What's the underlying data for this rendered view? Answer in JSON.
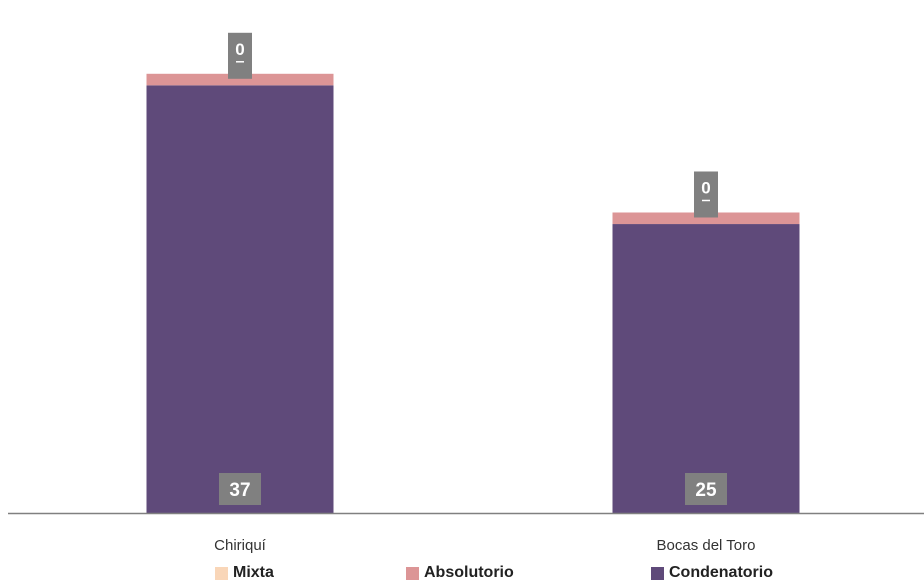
{
  "chart_data": {
    "type": "bar",
    "stacked": true,
    "categories": [
      "Chiriquí",
      "Bocas del Toro"
    ],
    "series": [
      {
        "name": "Condenatorio",
        "values": [
          37,
          25
        ],
        "color": "#5f4a7a"
      },
      {
        "name": "Absolutorio",
        "values": [
          1,
          1
        ],
        "color": "#dc9596"
      },
      {
        "name": "Mixta",
        "values": [
          0,
          0
        ],
        "color": "#f9d6b8"
      }
    ],
    "data_labels": {
      "Condenatorio": [
        "37",
        "25"
      ],
      "Mixta": [
        "0",
        "0"
      ]
    },
    "label_box_color": "#808080",
    "axis_color": "#808080",
    "ylim": [
      0,
      43
    ],
    "grid": false,
    "legend_position": "bottom",
    "legend_order": [
      "Mixta",
      "Absolutorio",
      "Condenatorio"
    ]
  }
}
